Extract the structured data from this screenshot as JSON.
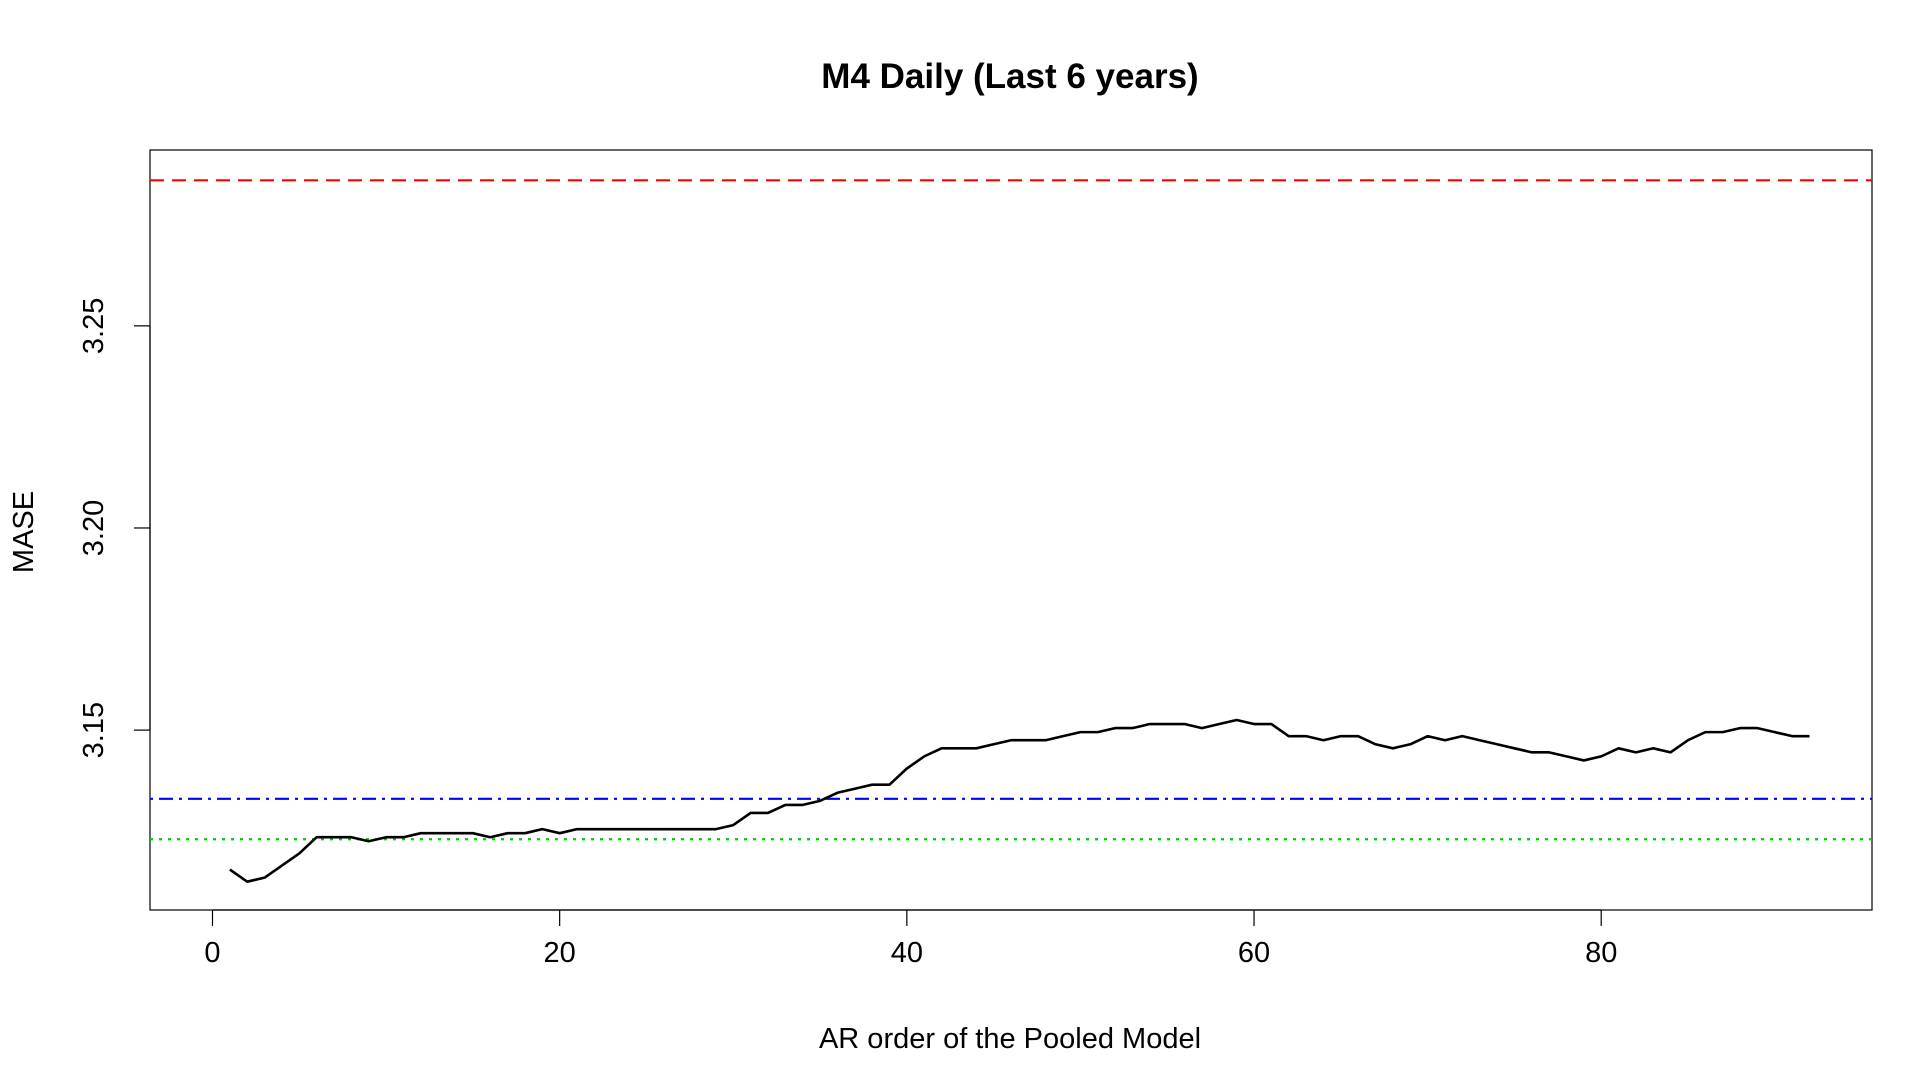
{
  "chart_data": {
    "type": "line",
    "title": "M4 Daily (Last 6 years)",
    "xlabel": "AR order of the Pooled Model",
    "ylabel": "MASE",
    "xlim": [
      -3.6,
      95.6
    ],
    "ylim": [
      3.1055,
      3.2935
    ],
    "xticks": [
      0,
      20,
      40,
      60,
      80
    ],
    "yticks": [
      3.15,
      3.2,
      3.25
    ],
    "ytick_labels": [
      "3.15",
      "3.20",
      "3.25"
    ],
    "grid": false,
    "series": [
      {
        "color": "#000000",
        "style": "solid",
        "x": [
          1,
          2,
          3,
          4,
          5,
          6,
          7,
          8,
          9,
          10,
          11,
          12,
          13,
          14,
          15,
          16,
          17,
          18,
          19,
          20,
          21,
          22,
          23,
          24,
          25,
          26,
          27,
          28,
          29,
          30,
          31,
          32,
          33,
          34,
          35,
          36,
          37,
          38,
          39,
          40,
          41,
          42,
          43,
          44,
          45,
          46,
          47,
          48,
          49,
          50,
          51,
          52,
          53,
          54,
          55,
          56,
          57,
          58,
          59,
          60,
          61,
          62,
          63,
          64,
          65,
          66,
          67,
          68,
          69,
          70,
          71,
          72,
          73,
          74,
          75,
          76,
          77,
          78,
          79,
          80,
          81,
          82,
          83,
          84,
          85,
          86,
          87,
          88,
          89,
          90,
          91,
          92
        ],
        "y": [
          3.1155,
          3.1125,
          3.1135,
          3.1165,
          3.1195,
          3.1235,
          3.1235,
          3.1235,
          3.1225,
          3.1235,
          3.1235,
          3.1245,
          3.1245,
          3.1245,
          3.1245,
          3.1235,
          3.1245,
          3.1245,
          3.1255,
          3.1245,
          3.1255,
          3.1255,
          3.1255,
          3.1255,
          3.1255,
          3.1255,
          3.1255,
          3.1255,
          3.1255,
          3.1265,
          3.1295,
          3.1295,
          3.1315,
          3.1315,
          3.1325,
          3.1345,
          3.1355,
          3.1365,
          3.1365,
          3.1405,
          3.1435,
          3.1455,
          3.1455,
          3.1455,
          3.1465,
          3.1475,
          3.1475,
          3.1475,
          3.1485,
          3.1495,
          3.1495,
          3.1505,
          3.1505,
          3.1515,
          3.1515,
          3.1515,
          3.1505,
          3.1515,
          3.1525,
          3.1515,
          3.1515,
          3.1485,
          3.1485,
          3.1475,
          3.1485,
          3.1485,
          3.1465,
          3.1455,
          3.1465,
          3.1485,
          3.1475,
          3.1485,
          3.1475,
          3.1465,
          3.1455,
          3.1445,
          3.1445,
          3.1435,
          3.1425,
          3.1435,
          3.1455,
          3.1445,
          3.1455,
          3.1445,
          3.1475,
          3.1495,
          3.1495,
          3.1505,
          3.1505,
          3.1495,
          3.1485,
          3.1485
        ]
      }
    ],
    "hlines": [
      {
        "y": 3.286,
        "color": "#ff0000",
        "style": "dashed"
      },
      {
        "y": 3.133,
        "color": "#0000ff",
        "style": "dotdash"
      },
      {
        "y": 3.123,
        "color": "#00cc00",
        "style": "dotted"
      }
    ]
  }
}
